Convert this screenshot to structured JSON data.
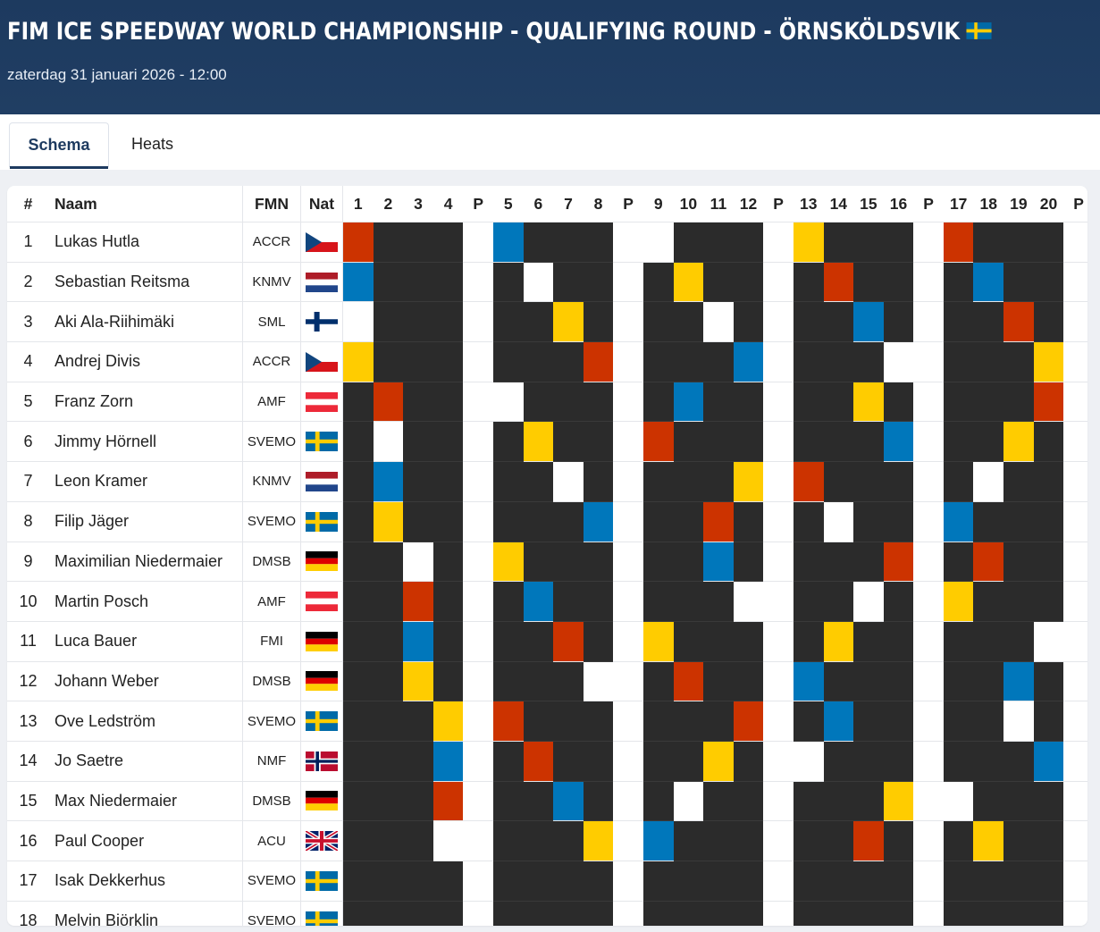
{
  "header": {
    "title": "FIM ICE SPEEDWAY WORLD CHAMPIONSHIP - QUALIFYING ROUND - ÖRNSKÖLDSVIK",
    "title_flag": "SE",
    "date": "zaterdag 31 januari 2026 - 12:00"
  },
  "tabs": [
    {
      "label": "Schema",
      "active": true
    },
    {
      "label": "Heats",
      "active": false
    }
  ],
  "table": {
    "headers": {
      "num": "#",
      "name": "Naam",
      "fmn": "FMN",
      "nat": "Nat"
    },
    "columns": [
      "1",
      "2",
      "3",
      "4",
      "P",
      "5",
      "6",
      "7",
      "8",
      "P",
      "9",
      "10",
      "11",
      "12",
      "P",
      "13",
      "14",
      "15",
      "16",
      "P",
      "17",
      "18",
      "19",
      "20",
      "P"
    ],
    "colors": {
      "D": "#2b2b2b",
      "W": "#ffffff",
      "R": "#cc3300",
      "B": "#0077bb",
      "Y": "#ffcc00"
    },
    "rows": [
      {
        "num": "1",
        "name": "Lukas Hutla",
        "fmn": "ACCR",
        "nat": "CZ",
        "cells": "RDDDW BDDD WWDDD WYDDD WRDDD W"
      },
      {
        "num": "2",
        "name": "Sebastian Reitsma",
        "fmn": "KNMV",
        "nat": "NL",
        "cells": "BDDDW DWDD WDYDD WDRDD WDBDD W"
      },
      {
        "num": "3",
        "name": "Aki Ala-Riihimäki",
        "fmn": "SML",
        "nat": "FI",
        "cells": "WDDDW DDYD WDDWD WDDBD WDDRD W"
      },
      {
        "num": "4",
        "name": "Andrej Divis",
        "fmn": "ACCR",
        "nat": "CZ",
        "cells": "YDDDW DDDR WDDDB WDDDW WDDDY W"
      },
      {
        "num": "5",
        "name": "Franz Zorn",
        "fmn": "AMF",
        "nat": "AT",
        "cells": "DRDDW WDDD WDBDD WDDYD WDDDR W"
      },
      {
        "num": "6",
        "name": "Jimmy Hörnell",
        "fmn": "SVEMO",
        "nat": "SE",
        "cells": "DWDDW DYDD WRDDD WDDDB WDDYD W"
      },
      {
        "num": "7",
        "name": "Leon Kramer",
        "fmn": "KNMV",
        "nat": "NL",
        "cells": "DBDDW DDWD WDDDY WRDDD WDWDD W"
      },
      {
        "num": "8",
        "name": "Filip Jäger",
        "fmn": "SVEMO",
        "nat": "SE",
        "cells": "DYDDW DDDB WDDRD WDWDD WBDDD W"
      },
      {
        "num": "9",
        "name": "Maximilian Niedermaier",
        "fmn": "DMSB",
        "nat": "DE",
        "cells": "DDWDW YDDD WDDBD WDDDR WDRDD W"
      },
      {
        "num": "10",
        "name": "Martin Posch",
        "fmn": "AMF",
        "nat": "AT",
        "cells": "DDRDW DBDD WDDDW WDDWD WYDDD W"
      },
      {
        "num": "11",
        "name": "Luca Bauer",
        "fmn": "FMI",
        "nat": "DE",
        "cells": "DDBDW DDRD WYDDD WDYDD WDDDW W"
      },
      {
        "num": "12",
        "name": "Johann Weber",
        "fmn": "DMSB",
        "nat": "DE",
        "cells": "DDYDW DDDW WDRDD WBDDD WDDBD W"
      },
      {
        "num": "13",
        "name": "Ove Ledström",
        "fmn": "SVEMO",
        "nat": "SE",
        "cells": "DDDYW RDDD WDDDR WDBDD WDDWD W"
      },
      {
        "num": "14",
        "name": "Jo Saetre",
        "fmn": "NMF",
        "nat": "NO",
        "cells": "DDDBW DRDD WDDYD WWDDD WDDDB W"
      },
      {
        "num": "15",
        "name": "Max Niedermaier",
        "fmn": "DMSB",
        "nat": "DE",
        "cells": "DDDRW DDBD WDWDD WDDDY WWDDD W"
      },
      {
        "num": "16",
        "name": "Paul Cooper",
        "fmn": "ACU",
        "nat": "GB",
        "cells": "DDDWW DDDY WBDDD WDDRD WDYDD W"
      },
      {
        "num": "17",
        "name": "Isak Dekkerhus",
        "fmn": "SVEMO",
        "nat": "SE",
        "cells": "DDDDW DDDD WDDDD WDDDD WDDDD W"
      },
      {
        "num": "18",
        "name": "Melvin Björklin",
        "fmn": "SVEMO",
        "nat": "SE",
        "cells": "DDDDW DDDD WDDDD WDDDD WDDDD W"
      }
    ]
  }
}
